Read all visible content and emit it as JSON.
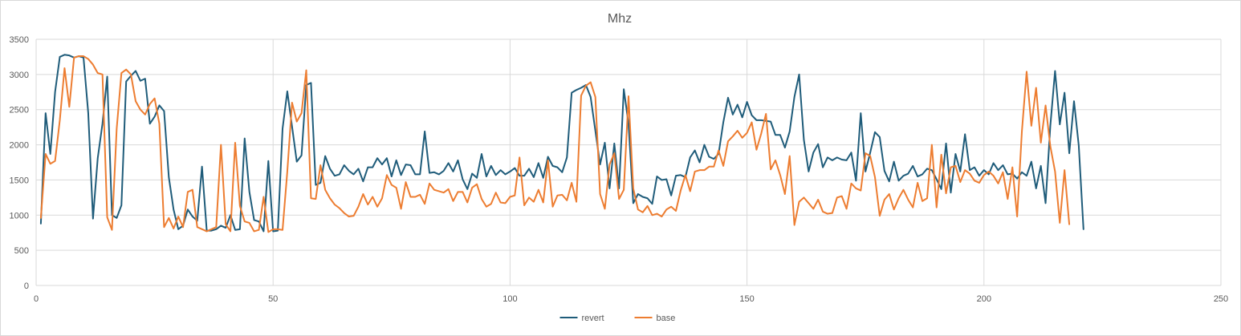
{
  "chart_data": {
    "type": "line",
    "title": "Mhz",
    "xlabel": "",
    "ylabel": "",
    "xlim": [
      0,
      250
    ],
    "ylim": [
      0,
      3500
    ],
    "xticks": [
      0,
      50,
      100,
      150,
      200,
      250
    ],
    "yticks": [
      0,
      500,
      1000,
      1500,
      2000,
      2500,
      3000,
      3500
    ],
    "grid": true,
    "legend_position": "bottom",
    "series": [
      {
        "name": "revert",
        "color": "#1f5c7a",
        "values": [
          880,
          2450,
          1870,
          2750,
          3250,
          3280,
          3270,
          3240,
          3260,
          3240,
          2450,
          950,
          1810,
          2300,
          2970,
          1000,
          960,
          1140,
          2900,
          2980,
          3050,
          2910,
          2940,
          2300,
          2400,
          2560,
          2480,
          1540,
          1080,
          800,
          850,
          1080,
          980,
          920,
          1690,
          780,
          780,
          800,
          850,
          820,
          1000,
          790,
          800,
          2090,
          1330,
          930,
          910,
          770,
          1770,
          770,
          780,
          2230,
          2760,
          2260,
          1760,
          1850,
          2850,
          2880,
          1430,
          1460,
          1840,
          1660,
          1560,
          1580,
          1710,
          1630,
          1580,
          1660,
          1480,
          1680,
          1680,
          1810,
          1720,
          1810,
          1550,
          1780,
          1570,
          1720,
          1710,
          1580,
          1580,
          2190,
          1600,
          1610,
          1580,
          1630,
          1740,
          1620,
          1780,
          1510,
          1370,
          1590,
          1530,
          1870,
          1550,
          1700,
          1570,
          1640,
          1580,
          1620,
          1670,
          1560,
          1560,
          1660,
          1540,
          1740,
          1530,
          1830,
          1700,
          1680,
          1610,
          1820,
          2740,
          2780,
          2810,
          2850,
          2680,
          2200,
          1720,
          2030,
          1380,
          2020,
          1380,
          2790,
          2300,
          1170,
          1300,
          1260,
          1240,
          1160,
          1550,
          1500,
          1510,
          1280,
          1560,
          1570,
          1540,
          1820,
          1920,
          1750,
          2000,
          1830,
          1800,
          1870,
          2320,
          2670,
          2430,
          2570,
          2390,
          2610,
          2420,
          2350,
          2350,
          2340,
          2330,
          2140,
          2140,
          1960,
          2190,
          2680,
          3000,
          2070,
          1620,
          1890,
          2010,
          1680,
          1820,
          1780,
          1820,
          1790,
          1780,
          1890,
          1490,
          2450,
          1620,
          1890,
          2180,
          2110,
          1630,
          1480,
          1760,
          1490,
          1560,
          1590,
          1700,
          1550,
          1580,
          1660,
          1640,
          1510,
          1370,
          2020,
          1320,
          1870,
          1620,
          2150,
          1640,
          1680,
          1560,
          1640,
          1580,
          1740,
          1640,
          1710,
          1580,
          1590,
          1520,
          1610,
          1560,
          1760,
          1380,
          1700,
          1170,
          2270,
          3050,
          2290,
          2740,
          1880,
          2620,
          1990,
          800
        ]
      },
      {
        "name": "base",
        "color": "#ed7d31",
        "values": [
          960,
          1870,
          1730,
          1770,
          2350,
          3090,
          2540,
          3240,
          3260,
          3260,
          3220,
          3140,
          3020,
          3000,
          970,
          790,
          2230,
          3020,
          3070,
          3000,
          2620,
          2500,
          2430,
          2580,
          2660,
          2300,
          830,
          960,
          810,
          980,
          830,
          1330,
          1360,
          830,
          800,
          770,
          800,
          830,
          2000,
          870,
          770,
          2030,
          1130,
          910,
          890,
          770,
          790,
          1260,
          760,
          800,
          800,
          790,
          1620,
          2600,
          2330,
          2450,
          3060,
          1240,
          1230,
          1710,
          1360,
          1240,
          1150,
          1100,
          1030,
          980,
          990,
          1120,
          1300,
          1150,
          1260,
          1120,
          1240,
          1570,
          1430,
          1390,
          1090,
          1470,
          1260,
          1260,
          1290,
          1160,
          1450,
          1360,
          1340,
          1320,
          1370,
          1200,
          1330,
          1330,
          1180,
          1390,
          1440,
          1230,
          1120,
          1160,
          1320,
          1180,
          1170,
          1260,
          1280,
          1820,
          1140,
          1250,
          1190,
          1360,
          1180,
          1780,
          1120,
          1280,
          1290,
          1210,
          1460,
          1190,
          2700,
          2840,
          2890,
          2680,
          1300,
          1090,
          1720,
          1880,
          1230,
          1360,
          2690,
          1380,
          1080,
          1040,
          1130,
          1000,
          1020,
          980,
          1080,
          1120,
          1060,
          1350,
          1570,
          1340,
          1620,
          1640,
          1640,
          1690,
          1690,
          1920,
          1700,
          2050,
          2120,
          2200,
          2100,
          2170,
          2320,
          1930,
          2160,
          2440,
          1650,
          1780,
          1570,
          1300,
          1840,
          860,
          1190,
          1250,
          1170,
          1090,
          1220,
          1050,
          1020,
          1030,
          1250,
          1270,
          1090,
          1450,
          1380,
          1350,
          1880,
          1840,
          1540,
          990,
          1220,
          1300,
          1080,
          1240,
          1360,
          1220,
          1110,
          1460,
          1200,
          1240,
          2000,
          1110,
          1860,
          1310,
          1680,
          1700,
          1470,
          1640,
          1590,
          1490,
          1460,
          1570,
          1620,
          1560,
          1450,
          1610,
          1230,
          1680,
          980,
          2190,
          3040,
          2270,
          2810,
          2030,
          2560,
          1980,
          1620,
          890,
          1640,
          870
        ]
      }
    ]
  }
}
